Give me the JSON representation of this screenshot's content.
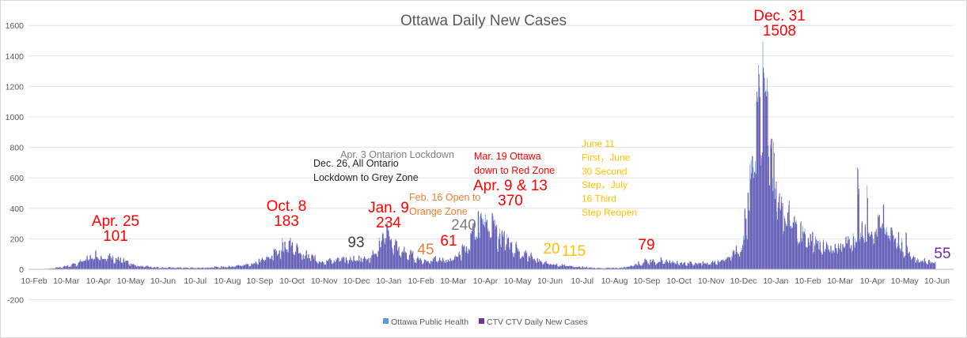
{
  "chart_data": {
    "type": "bar",
    "title": "Ottawa Daily New Cases",
    "xlabel": "",
    "ylabel": "",
    "ylim": [
      -200,
      1600
    ],
    "yticks": [
      -200,
      0,
      200,
      400,
      600,
      800,
      1000,
      1200,
      1400,
      1600
    ],
    "x_tick_labels": [
      "10-Feb",
      "10-Mar",
      "10-Apr",
      "10-May",
      "10-Jun",
      "10-Jul",
      "10-Aug",
      "10-Sep",
      "10-Oct",
      "10-Nov",
      "10-Dec",
      "10-Jan",
      "10-Feb",
      "10-Mar",
      "10-Apr",
      "10-May",
      "10-Jun",
      "10-Jul",
      "10-Aug",
      "10-Sep",
      "10-Oct",
      "10-Nov",
      "10-Dec",
      "10-Jan",
      "10-Feb",
      "10-Mar",
      "10-Apr",
      "10-May",
      "10-Jun"
    ],
    "grid": "horizontal",
    "legend_position": "bottom",
    "series": [
      {
        "name": "Ottawa Public Health",
        "color": "#5b9bd5"
      },
      {
        "name": "CTV CTV Daily New Cases",
        "color": "#7030a0"
      }
    ],
    "key_points": [
      {
        "month_index": 2,
        "value": 101
      },
      {
        "month_index": 7.9,
        "value": 183
      },
      {
        "month_index": 11,
        "value": 234
      },
      {
        "month_index": 14,
        "value": 370
      },
      {
        "month_index": 22.7,
        "value": 1508
      },
      {
        "month_index": 28,
        "value": 55
      }
    ],
    "annotations": [
      {
        "lines": [
          "Apr. 25",
          "101"
        ],
        "color": "#ff0000",
        "size": 19
      },
      {
        "lines": [
          "Oct. 8",
          "183"
        ],
        "color": "#ff0000",
        "size": 19
      },
      {
        "lines": [
          "93"
        ],
        "color": "#404040",
        "size": 19
      },
      {
        "lines": [
          "Jan. 9",
          "234"
        ],
        "color": "#ff0000",
        "size": 19
      },
      {
        "lines": [
          "45"
        ],
        "color": "#ed7d31",
        "size": 19
      },
      {
        "lines": [
          "61"
        ],
        "color": "#ff0000",
        "size": 19
      },
      {
        "lines": [
          "240"
        ],
        "color": "#7f7f7f",
        "size": 19
      },
      {
        "lines": [
          "Apr. 9 & 13",
          "370"
        ],
        "color": "#ff0000",
        "size": 19
      },
      {
        "lines": [
          "20"
        ],
        "color": "#ffc000",
        "size": 19
      },
      {
        "lines": [
          "115"
        ],
        "color": "#ffc000",
        "size": 19
      },
      {
        "lines": [
          "79"
        ],
        "color": "#ff0000",
        "size": 19
      },
      {
        "lines": [
          "Dec. 31",
          "1508"
        ],
        "color": "#ff0000",
        "size": 19
      },
      {
        "lines": [
          "55"
        ],
        "color": "#7030a0",
        "size": 19
      },
      {
        "lines": [
          "Apr. 3 Ontarion Lockdown"
        ],
        "color": "#7f7f7f",
        "size": 12.5
      },
      {
        "lines": [
          "Dec. 26, All Ontario",
          "Lockdown to Grey Zone"
        ],
        "color": "#262626",
        "size": 12.5
      },
      {
        "lines": [
          "Feb. 16 Open to",
          "Orange Zone"
        ],
        "color": "#ed7d31",
        "size": 12.5
      },
      {
        "lines": [
          "Mar. 19 Ottawa",
          "down to Red Zone"
        ],
        "color": "#ff0000",
        "size": 12.5
      },
      {
        "lines": [
          "June 11",
          "First，June",
          "30 Second",
          "Step，July",
          "16 Third",
          "Step Reopen"
        ],
        "color": "#ffc000",
        "size": 12
      }
    ]
  }
}
